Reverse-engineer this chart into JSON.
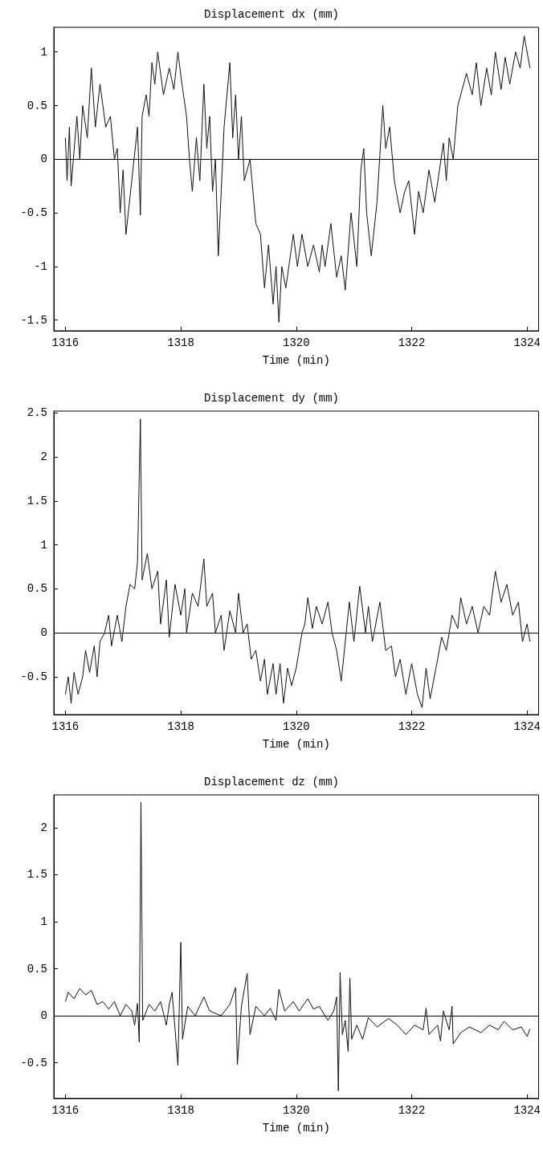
{
  "chart_data": [
    {
      "type": "line",
      "title": "Displacement dx (mm)",
      "xlabel": "Time (min)",
      "xlim": [
        1315.8,
        1324.2
      ],
      "xticks": [
        1316,
        1318,
        1320,
        1322,
        1324
      ],
      "ylim": [
        -1.6,
        1.23
      ],
      "yticks": [
        -1.5,
        -1,
        -0.5,
        0,
        0.5,
        1
      ],
      "marker": "none",
      "line_style": "solid",
      "ref_lines": [
        {
          "axis": "y",
          "value": 0,
          "label": null,
          "color": "#000000"
        }
      ],
      "series": [
        {
          "color": "#111111",
          "x": [
            1316.0,
            1316.03,
            1316.07,
            1316.1,
            1316.2,
            1316.25,
            1316.3,
            1316.38,
            1316.45,
            1316.52,
            1316.6,
            1316.7,
            1316.78,
            1316.85,
            1316.9,
            1316.95,
            1317.0,
            1317.05,
            1317.15,
            1317.25,
            1317.3,
            1317.33,
            1317.4,
            1317.45,
            1317.5,
            1317.55,
            1317.6,
            1317.7,
            1317.8,
            1317.88,
            1317.95,
            1318.02,
            1318.1,
            1318.15,
            1318.2,
            1318.27,
            1318.33,
            1318.4,
            1318.45,
            1318.5,
            1318.55,
            1318.6,
            1318.65,
            1318.75,
            1318.85,
            1318.9,
            1318.95,
            1319.0,
            1319.05,
            1319.1,
            1319.2,
            1319.3,
            1319.38,
            1319.45,
            1319.52,
            1319.6,
            1319.65,
            1319.7,
            1319.75,
            1319.82,
            1319.95,
            1320.02,
            1320.1,
            1320.2,
            1320.3,
            1320.4,
            1320.45,
            1320.5,
            1320.6,
            1320.7,
            1320.78,
            1320.85,
            1320.95,
            1321.05,
            1321.12,
            1321.17,
            1321.22,
            1321.3,
            1321.4,
            1321.5,
            1321.55,
            1321.62,
            1321.7,
            1321.8,
            1321.88,
            1321.95,
            1322.05,
            1322.12,
            1322.2,
            1322.3,
            1322.4,
            1322.55,
            1322.6,
            1322.65,
            1322.72,
            1322.8,
            1322.95,
            1323.05,
            1323.12,
            1323.2,
            1323.3,
            1323.38,
            1323.45,
            1323.55,
            1323.62,
            1323.7,
            1323.8,
            1323.88,
            1323.95,
            1324.05
          ],
          "values": [
            0.2,
            -0.2,
            0.3,
            -0.25,
            0.4,
            0.0,
            0.5,
            0.2,
            0.85,
            0.3,
            0.7,
            0.3,
            0.4,
            0.0,
            0.1,
            -0.5,
            -0.1,
            -0.7,
            -0.2,
            0.3,
            -0.52,
            0.4,
            0.6,
            0.4,
            0.9,
            0.7,
            1.0,
            0.6,
            0.85,
            0.65,
            1.0,
            0.7,
            0.4,
            0.0,
            -0.3,
            0.2,
            -0.2,
            0.7,
            0.1,
            0.4,
            -0.3,
            0.0,
            -0.9,
            0.3,
            0.9,
            0.2,
            0.6,
            0.0,
            0.4,
            -0.2,
            0.0,
            -0.6,
            -0.7,
            -1.2,
            -0.8,
            -1.35,
            -1.0,
            -1.52,
            -1.0,
            -1.2,
            -0.7,
            -1.0,
            -0.7,
            -1.0,
            -0.8,
            -1.05,
            -0.8,
            -1.0,
            -0.6,
            -1.1,
            -0.9,
            -1.22,
            -0.5,
            -1.0,
            -0.1,
            0.1,
            -0.5,
            -0.9,
            -0.4,
            0.5,
            0.1,
            0.3,
            -0.2,
            -0.5,
            -0.3,
            -0.2,
            -0.7,
            -0.3,
            -0.5,
            -0.1,
            -0.4,
            0.15,
            -0.2,
            0.2,
            0.0,
            0.5,
            0.8,
            0.6,
            0.9,
            0.5,
            0.85,
            0.6,
            1.0,
            0.65,
            0.95,
            0.7,
            1.0,
            0.85,
            1.15,
            0.85
          ]
        }
      ]
    },
    {
      "type": "line",
      "title": "Displacement dy (mm)",
      "xlabel": "Time (min)",
      "xlim": [
        1315.8,
        1324.2
      ],
      "xticks": [
        1316,
        1318,
        1320,
        1322,
        1324
      ],
      "ylim": [
        -0.93,
        2.52
      ],
      "yticks": [
        -0.5,
        0,
        0.5,
        1,
        1.5,
        2,
        2.5
      ],
      "marker": "none",
      "line_style": "solid",
      "ref_lines": [
        {
          "axis": "y",
          "value": 0,
          "label": null,
          "color": "#000000"
        }
      ],
      "series": [
        {
          "color": "#111111",
          "x": [
            1316.0,
            1316.05,
            1316.1,
            1316.15,
            1316.22,
            1316.3,
            1316.35,
            1316.42,
            1316.5,
            1316.55,
            1316.6,
            1316.68,
            1316.75,
            1316.8,
            1316.9,
            1316.98,
            1317.05,
            1317.12,
            1317.2,
            1317.25,
            1317.3,
            1317.33,
            1317.42,
            1317.5,
            1317.6,
            1317.65,
            1317.75,
            1317.8,
            1317.9,
            1318.0,
            1318.07,
            1318.1,
            1318.2,
            1318.3,
            1318.4,
            1318.45,
            1318.55,
            1318.6,
            1318.7,
            1318.75,
            1318.85,
            1318.95,
            1319.0,
            1319.08,
            1319.15,
            1319.22,
            1319.3,
            1319.38,
            1319.45,
            1319.5,
            1319.6,
            1319.65,
            1319.72,
            1319.78,
            1319.85,
            1319.92,
            1320.0,
            1320.1,
            1320.15,
            1320.2,
            1320.28,
            1320.35,
            1320.45,
            1320.55,
            1320.62,
            1320.7,
            1320.78,
            1320.85,
            1320.92,
            1321.0,
            1321.1,
            1321.2,
            1321.25,
            1321.32,
            1321.45,
            1321.55,
            1321.65,
            1321.72,
            1321.8,
            1321.9,
            1322.0,
            1322.1,
            1322.18,
            1322.25,
            1322.32,
            1322.45,
            1322.52,
            1322.6,
            1322.7,
            1322.8,
            1322.85,
            1322.95,
            1323.05,
            1323.15,
            1323.25,
            1323.35,
            1323.45,
            1323.55,
            1323.65,
            1323.75,
            1323.85,
            1323.92,
            1324.0,
            1324.05
          ],
          "values": [
            -0.7,
            -0.5,
            -0.8,
            -0.45,
            -0.7,
            -0.5,
            -0.2,
            -0.45,
            -0.15,
            -0.5,
            -0.1,
            0.0,
            0.2,
            -0.15,
            0.2,
            -0.1,
            0.3,
            0.55,
            0.5,
            0.8,
            2.43,
            0.6,
            0.9,
            0.5,
            0.7,
            0.1,
            0.6,
            -0.05,
            0.55,
            0.2,
            0.5,
            0.0,
            0.45,
            0.3,
            0.84,
            0.3,
            0.45,
            0.0,
            0.2,
            -0.2,
            0.25,
            0.0,
            0.45,
            0.0,
            0.1,
            -0.3,
            -0.2,
            -0.55,
            -0.3,
            -0.7,
            -0.35,
            -0.7,
            -0.35,
            -0.8,
            -0.4,
            -0.6,
            -0.4,
            0.0,
            0.1,
            0.4,
            0.05,
            0.3,
            0.1,
            0.35,
            0.0,
            -0.2,
            -0.55,
            -0.1,
            0.35,
            -0.1,
            0.53,
            0.0,
            0.3,
            -0.1,
            0.35,
            -0.2,
            -0.15,
            -0.5,
            -0.3,
            -0.7,
            -0.35,
            -0.7,
            -0.85,
            -0.4,
            -0.75,
            -0.3,
            -0.05,
            -0.2,
            0.2,
            0.05,
            0.4,
            0.1,
            0.3,
            0.0,
            0.3,
            0.2,
            0.7,
            0.35,
            0.55,
            0.2,
            0.35,
            -0.1,
            0.1,
            -0.1
          ]
        }
      ]
    },
    {
      "type": "line",
      "title": "Displacement dz (mm)",
      "xlabel": "Time (min)",
      "xlim": [
        1315.8,
        1324.2
      ],
      "xticks": [
        1316,
        1318,
        1320,
        1322,
        1324
      ],
      "ylim": [
        -0.88,
        2.35
      ],
      "yticks": [
        -0.5,
        0,
        0.5,
        1,
        1.5,
        2
      ],
      "marker": "none",
      "line_style": "solid",
      "ref_lines": [
        {
          "axis": "y",
          "value": 0,
          "label": null,
          "color": "#000000"
        }
      ],
      "series": [
        {
          "color": "#111111",
          "x": [
            1316.0,
            1316.05,
            1316.15,
            1316.25,
            1316.35,
            1316.45,
            1316.55,
            1316.65,
            1316.75,
            1316.85,
            1316.95,
            1317.05,
            1317.15,
            1317.2,
            1317.25,
            1317.28,
            1317.31,
            1317.34,
            1317.45,
            1317.55,
            1317.65,
            1317.75,
            1317.8,
            1317.85,
            1317.95,
            1318.0,
            1318.03,
            1318.12,
            1318.25,
            1318.4,
            1318.5,
            1318.7,
            1318.85,
            1318.95,
            1318.98,
            1319.05,
            1319.15,
            1319.2,
            1319.3,
            1319.45,
            1319.55,
            1319.65,
            1319.7,
            1319.8,
            1319.95,
            1320.05,
            1320.2,
            1320.3,
            1320.4,
            1320.55,
            1320.65,
            1320.7,
            1320.73,
            1320.76,
            1320.8,
            1320.85,
            1320.9,
            1320.93,
            1320.96,
            1321.05,
            1321.15,
            1321.25,
            1321.4,
            1321.6,
            1321.75,
            1321.9,
            1322.05,
            1322.2,
            1322.25,
            1322.3,
            1322.45,
            1322.5,
            1322.55,
            1322.65,
            1322.7,
            1322.72,
            1322.85,
            1323.0,
            1323.2,
            1323.35,
            1323.5,
            1323.6,
            1323.75,
            1323.9,
            1324.0,
            1324.05
          ],
          "values": [
            0.15,
            0.25,
            0.18,
            0.29,
            0.22,
            0.27,
            0.12,
            0.15,
            0.07,
            0.15,
            0.0,
            0.12,
            0.05,
            -0.1,
            0.13,
            -0.28,
            2.27,
            -0.05,
            0.12,
            0.05,
            0.15,
            -0.1,
            0.12,
            0.25,
            -0.53,
            0.78,
            -0.25,
            0.1,
            0.0,
            0.2,
            0.05,
            0.0,
            0.12,
            0.3,
            -0.52,
            0.1,
            0.45,
            -0.2,
            0.1,
            0.0,
            0.08,
            -0.05,
            0.28,
            0.05,
            0.15,
            0.05,
            0.18,
            0.07,
            0.1,
            -0.05,
            0.05,
            0.2,
            -0.8,
            0.46,
            -0.2,
            -0.05,
            -0.38,
            0.4,
            -0.25,
            -0.1,
            -0.25,
            -0.02,
            -0.12,
            -0.03,
            -0.1,
            -0.2,
            -0.1,
            -0.15,
            0.08,
            -0.2,
            -0.1,
            -0.27,
            0.05,
            -0.15,
            0.1,
            -0.3,
            -0.18,
            -0.12,
            -0.18,
            -0.1,
            -0.15,
            -0.06,
            -0.15,
            -0.12,
            -0.22,
            -0.14
          ]
        }
      ]
    }
  ]
}
